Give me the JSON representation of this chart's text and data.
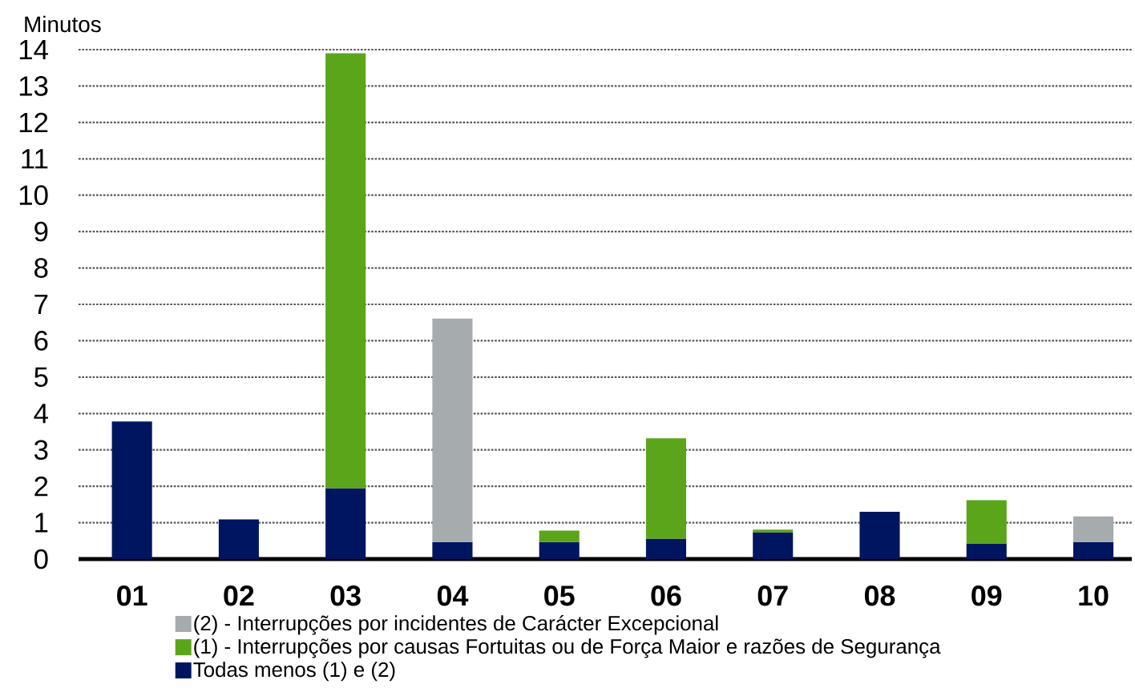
{
  "chart_data": {
    "type": "bar",
    "stacked": true,
    "ylabel": "Minutos",
    "categories": [
      "01",
      "02",
      "03",
      "04",
      "05",
      "06",
      "07",
      "08",
      "09",
      "10"
    ],
    "series": [
      {
        "name": "Todas menos (1) e (2)",
        "color": "#001560",
        "values": [
          3.78,
          1.09,
          1.95,
          0.47,
          0.47,
          0.56,
          0.74,
          1.3,
          0.43,
          0.47
        ]
      },
      {
        "name": "(1) - Interrupções por causas Fortuitas ou de Força Maior e razões de Segurança",
        "color": "#5aa519",
        "values": [
          null,
          null,
          11.95,
          null,
          0.31,
          2.76,
          0.07,
          null,
          1.19,
          null
        ]
      },
      {
        "name": "(2) - Interrupções por incidentes de Carácter Excepcional",
        "color": "#a6abad",
        "values": [
          null,
          null,
          null,
          6.14,
          null,
          null,
          null,
          null,
          null,
          0.7
        ]
      }
    ],
    "ylim": [
      0,
      14
    ],
    "yticks": [
      0,
      1,
      2,
      3,
      4,
      5,
      6,
      7,
      8,
      9,
      10,
      11,
      12,
      13,
      14
    ],
    "grid": "y",
    "legend": "bottom"
  }
}
